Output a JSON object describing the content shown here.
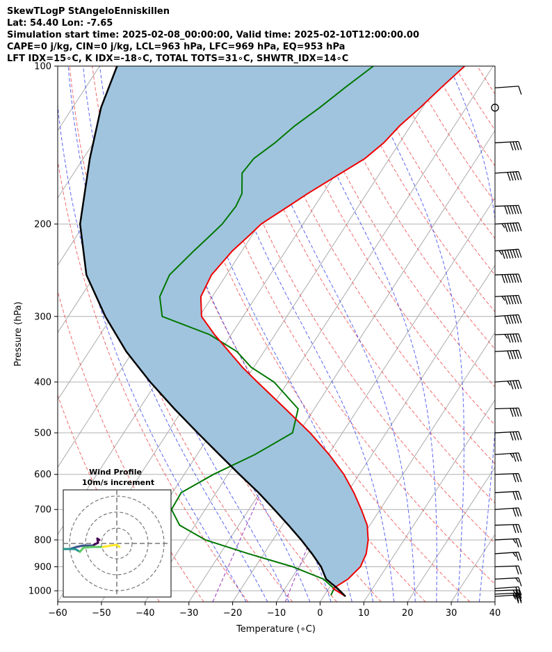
{
  "header": {
    "line1": "SkewTLogP StAngeloEnniskillen",
    "line2": "Lat: 54.40   Lon: -7.65",
    "line3": "Simulation start time: 2025-02-08_00:00:00, Valid time: 2025-02-10T12:00:00.00",
    "line4": "CAPE=0 j/kg, CIN=0 j/kg, LCL=963 hPa, LFC=969 hPa, EQ=953 hPa",
    "line5": "LFT IDX=15∘C, K IDX=-18∘C, TOTAL TOTS=31∘C, SHWTR_IDX=14∘C"
  },
  "chart_data": {
    "type": "line",
    "subtype": "skew-t log-p",
    "xlabel": "Temperature (∘C)",
    "ylabel": "Pressure (hPa)",
    "xlim": [
      -60,
      40
    ],
    "ylim_hpa": [
      1050,
      100
    ],
    "x_ticks": [
      "−60",
      "−50",
      "−40",
      "−30",
      "−20",
      "−10",
      "0",
      "10",
      "20",
      "30",
      "40"
    ],
    "y_ticks": [
      "100",
      "200",
      "300",
      "400",
      "500",
      "600",
      "700",
      "800",
      "900",
      "1000"
    ],
    "series": [
      {
        "name": "temperature",
        "color": "#ee0000",
        "points": [
          [
            5,
            1025
          ],
          [
            1,
            990
          ],
          [
            3,
            950
          ],
          [
            4,
            900
          ],
          [
            3.4,
            850
          ],
          [
            1.8,
            800
          ],
          [
            -0.6,
            750
          ],
          [
            -4.3,
            700
          ],
          [
            -8.5,
            650
          ],
          [
            -13.5,
            600
          ],
          [
            -19.8,
            550
          ],
          [
            -27.4,
            500
          ],
          [
            -36.6,
            450
          ],
          [
            -47,
            400
          ],
          [
            -52.6,
            375
          ],
          [
            -58,
            350
          ],
          [
            -63.8,
            325
          ],
          [
            -69.5,
            300
          ],
          [
            -72.6,
            275
          ],
          [
            -73.4,
            250
          ],
          [
            -72.2,
            225
          ],
          [
            -70.6,
            210
          ],
          [
            -69.6,
            200
          ],
          [
            -66,
            185
          ],
          [
            -63.5,
            175
          ],
          [
            -55.6,
            150
          ],
          [
            -53.6,
            140
          ],
          [
            -52.5,
            130
          ],
          [
            -50.5,
            120
          ],
          [
            -48.7,
            110
          ],
          [
            -46.5,
            100
          ]
        ]
      },
      {
        "name": "dewpoint",
        "color": "#007700",
        "points": [
          [
            1.5,
            1020
          ],
          [
            1.2,
            990
          ],
          [
            -2.6,
            950
          ],
          [
            -11.5,
            900
          ],
          [
            -23.5,
            850
          ],
          [
            -35.4,
            800
          ],
          [
            -43.5,
            750
          ],
          [
            -47.7,
            700
          ],
          [
            -48,
            650
          ],
          [
            -43.3,
            600
          ],
          [
            -36.8,
            550
          ],
          [
            -31.4,
            500
          ],
          [
            -33.7,
            450
          ],
          [
            -43.2,
            400
          ],
          [
            -50.6,
            375
          ],
          [
            -56.2,
            350
          ],
          [
            -64.9,
            325
          ],
          [
            -78.5,
            300
          ],
          [
            -82,
            275
          ],
          [
            -83,
            250
          ],
          [
            -81,
            225
          ],
          [
            -79.5,
            210
          ],
          [
            -78.5,
            200
          ],
          [
            -78,
            185
          ],
          [
            -78.5,
            175
          ],
          [
            -81.5,
            160
          ],
          [
            -81,
            150
          ],
          [
            -78.5,
            140
          ],
          [
            -76.5,
            130
          ],
          [
            -73.5,
            120
          ],
          [
            -70.7,
            110
          ],
          [
            -67.4,
            100
          ]
        ]
      },
      {
        "name": "parcel",
        "color": "#000000",
        "points": [
          [
            5,
            1025
          ],
          [
            2,
            990
          ],
          [
            -2,
            950
          ],
          [
            -5,
            900
          ],
          [
            -9,
            850
          ],
          [
            -13.5,
            800
          ],
          [
            -18.6,
            750
          ],
          [
            -24.2,
            700
          ],
          [
            -30.3,
            650
          ],
          [
            -37.4,
            600
          ],
          [
            -44.9,
            550
          ],
          [
            -53.1,
            500
          ],
          [
            -62,
            450
          ],
          [
            -71.5,
            400
          ],
          [
            -81.5,
            350
          ],
          [
            -91.5,
            300
          ],
          [
            -102,
            250
          ],
          [
            -111,
            200
          ],
          [
            -118.5,
            150
          ],
          [
            -123.5,
            120
          ],
          [
            -126,
            100
          ]
        ]
      }
    ],
    "shaded_region": {
      "name": "CIN/CAPE area",
      "color": "#a0c4de",
      "between": [
        "parcel",
        "temperature"
      ]
    },
    "wind_barbs": {
      "pressures_hpa": [
        1025,
        1015,
        1000,
        990,
        950,
        900,
        850,
        800,
        750,
        700,
        650,
        600,
        550,
        500,
        450,
        400,
        350,
        325,
        300,
        275,
        250,
        225,
        200,
        185,
        160,
        140,
        120,
        110
      ],
      "speed_kt": [
        25,
        25,
        25,
        20,
        15,
        20,
        25,
        25,
        30,
        30,
        30,
        30,
        35,
        40,
        40,
        45,
        50,
        55,
        60,
        65,
        70,
        75,
        65,
        60,
        50,
        40,
        0,
        10
      ]
    },
    "inset": {
      "title": "Wind Profile",
      "subtitle": "10m/s increment",
      "colormap": [
        "#440154",
        "#3b528b",
        "#21918c",
        "#5ec962",
        "#fde725"
      ]
    },
    "colors": {
      "dry_adiabat": "#ee4444",
      "moist_adiabat": "#2233ee",
      "mixing_ratio": "#9933bb",
      "isotherm": "#aaaaaa"
    }
  }
}
